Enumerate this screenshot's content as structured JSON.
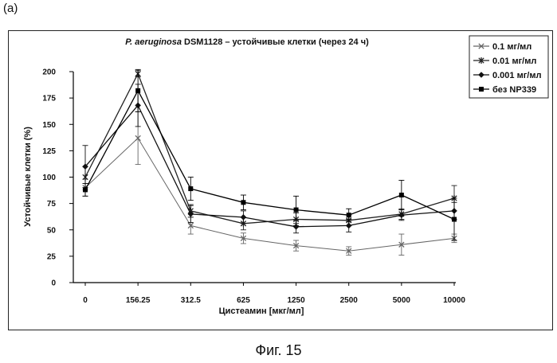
{
  "panel_label": "(a)",
  "caption": "Фиг. 15",
  "chart_data": {
    "type": "line",
    "title_italic": "P. aeruginosa",
    "title_rest": " DSM1128 – устойчивые клетки (через 24 ч)",
    "xlabel": "Цистеамин [мкг/мл]",
    "ylabel": "Устойчивые клетки  (%)",
    "categories": [
      "0",
      "156.25",
      "312.5",
      "625",
      "1250",
      "2500",
      "5000",
      "10000"
    ],
    "yticks": [
      "0",
      "25",
      "50",
      "75",
      "100",
      "125",
      "150",
      "175",
      "200"
    ],
    "ylim": [
      0,
      200
    ],
    "grid": false,
    "legend_position": "top-right",
    "series": [
      {
        "name": "0.1 мг/мл",
        "marker": "x",
        "color": "#666666",
        "values": [
          90,
          137,
          54,
          42,
          35,
          30,
          36,
          42
        ],
        "errors": [
          8,
          25,
          8,
          5,
          5,
          4,
          10,
          4
        ]
      },
      {
        "name": "0.01 мг/мл",
        "marker": "star",
        "color": "#222222",
        "values": [
          100,
          198,
          68,
          56,
          60,
          59,
          65,
          80
        ],
        "errors": [
          10,
          3,
          6,
          6,
          6,
          5,
          5,
          12
        ]
      },
      {
        "name": "0.001 мг/мл",
        "marker": "diamond",
        "color": "#111111",
        "values": [
          110,
          168,
          65,
          62,
          53,
          54,
          64,
          68
        ],
        "errors": [
          20,
          20,
          8,
          6,
          6,
          6,
          5,
          8
        ]
      },
      {
        "name": "без NP339",
        "marker": "square",
        "color": "#000000",
        "values": [
          88,
          182,
          89,
          76,
          69,
          64,
          83,
          60
        ],
        "errors": [
          6,
          20,
          11,
          7,
          13,
          6,
          14,
          20
        ]
      }
    ]
  }
}
